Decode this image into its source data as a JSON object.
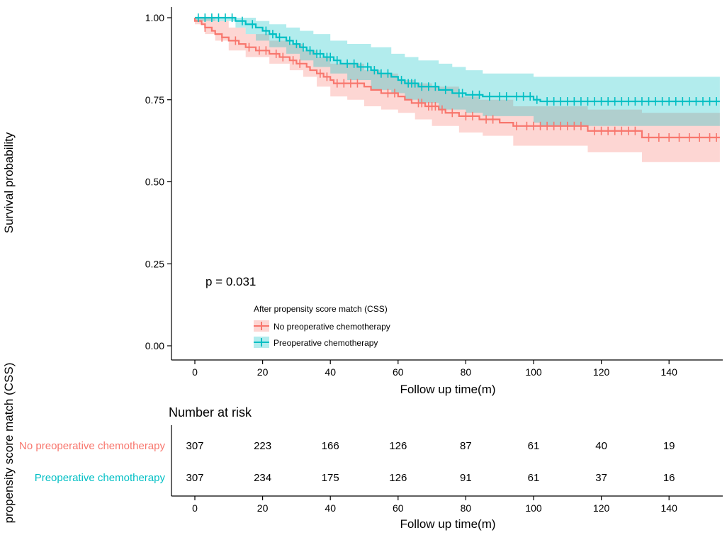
{
  "chart_data": {
    "type": "line",
    "subtype": "kaplan-meier",
    "ylabel": "Survival probability",
    "xlabel": "Follow up time(m)",
    "xlim": [
      -7,
      156
    ],
    "ylim": [
      0,
      1
    ],
    "x_ticks": [
      0,
      20,
      40,
      60,
      80,
      100,
      120,
      140
    ],
    "y_ticks": [
      0.0,
      0.25,
      0.5,
      0.75,
      1.0
    ],
    "y_tick_labels": [
      "0.00",
      "0.25",
      "0.50",
      "0.75",
      "1.00"
    ],
    "annotation": "p = 0.031",
    "legend": {
      "title": "After propensity score match (CSS)",
      "entries": [
        "No preoperative chemotherapy",
        "Preoperative chemotherapy"
      ]
    },
    "series": [
      {
        "name": "No preoperative chemotherapy",
        "color": "#F8766D",
        "band_color": "#F8766D",
        "steps": [
          [
            0,
            1.0
          ],
          [
            0,
            0.99
          ],
          [
            2,
            0.98
          ],
          [
            3,
            0.97
          ],
          [
            5,
            0.96
          ],
          [
            6,
            0.95
          ],
          [
            8,
            0.94
          ],
          [
            10,
            0.93
          ],
          [
            13,
            0.92
          ],
          [
            15,
            0.91
          ],
          [
            18,
            0.9
          ],
          [
            22,
            0.89
          ],
          [
            25,
            0.88
          ],
          [
            28,
            0.87
          ],
          [
            30,
            0.86
          ],
          [
            33,
            0.85
          ],
          [
            34,
            0.84
          ],
          [
            36,
            0.83
          ],
          [
            38,
            0.82
          ],
          [
            40,
            0.81
          ],
          [
            41,
            0.8
          ],
          [
            50,
            0.79
          ],
          [
            52,
            0.78
          ],
          [
            55,
            0.77
          ],
          [
            60,
            0.76
          ],
          [
            62,
            0.75
          ],
          [
            64,
            0.74
          ],
          [
            68,
            0.73
          ],
          [
            72,
            0.72
          ],
          [
            74,
            0.71
          ],
          [
            78,
            0.7
          ],
          [
            84,
            0.69
          ],
          [
            90,
            0.68
          ],
          [
            94,
            0.67
          ],
          [
            116,
            0.655
          ],
          [
            132,
            0.635
          ],
          [
            155,
            0.635
          ]
        ],
        "lower": [
          [
            0,
            0.98
          ],
          [
            3,
            0.95
          ],
          [
            6,
            0.93
          ],
          [
            10,
            0.9
          ],
          [
            15,
            0.88
          ],
          [
            22,
            0.86
          ],
          [
            28,
            0.84
          ],
          [
            32,
            0.82
          ],
          [
            36,
            0.79
          ],
          [
            40,
            0.76
          ],
          [
            45,
            0.75
          ],
          [
            50,
            0.73
          ],
          [
            55,
            0.72
          ],
          [
            60,
            0.71
          ],
          [
            65,
            0.69
          ],
          [
            70,
            0.67
          ],
          [
            78,
            0.65
          ],
          [
            85,
            0.64
          ],
          [
            94,
            0.61
          ],
          [
            116,
            0.59
          ],
          [
            132,
            0.56
          ],
          [
            155,
            0.56
          ]
        ],
        "upper": [
          [
            0,
            1.0
          ],
          [
            3,
            1.0
          ],
          [
            6,
            0.99
          ],
          [
            10,
            0.97
          ],
          [
            15,
            0.95
          ],
          [
            22,
            0.93
          ],
          [
            28,
            0.92
          ],
          [
            32,
            0.9
          ],
          [
            36,
            0.88
          ],
          [
            40,
            0.86
          ],
          [
            50,
            0.84
          ],
          [
            55,
            0.83
          ],
          [
            60,
            0.81
          ],
          [
            65,
            0.8
          ],
          [
            70,
            0.79
          ],
          [
            78,
            0.76
          ],
          [
            84,
            0.75
          ],
          [
            94,
            0.73
          ],
          [
            116,
            0.72
          ],
          [
            132,
            0.71
          ],
          [
            155,
            0.71
          ]
        ],
        "censor_x": [
          3,
          8,
          12,
          16,
          19,
          21,
          24,
          26,
          29,
          31,
          37,
          39,
          42,
          44,
          46,
          48,
          57,
          59,
          66,
          67,
          69,
          70,
          71,
          73,
          76,
          80,
          82,
          86,
          88,
          95,
          98,
          100,
          102,
          104,
          106,
          108,
          110,
          112,
          114,
          118,
          120,
          122,
          124,
          126,
          128,
          130,
          134,
          137,
          140,
          143,
          146,
          149,
          152,
          154
        ]
      },
      {
        "name": "Preoperative chemotherapy",
        "color": "#00BFC4",
        "band_color": "#00BFC4",
        "steps": [
          [
            0,
            1.0
          ],
          [
            12,
            0.99
          ],
          [
            15,
            0.98
          ],
          [
            18,
            0.97
          ],
          [
            20,
            0.96
          ],
          [
            22,
            0.95
          ],
          [
            24,
            0.94
          ],
          [
            27,
            0.93
          ],
          [
            29,
            0.92
          ],
          [
            31,
            0.91
          ],
          [
            33,
            0.9
          ],
          [
            35,
            0.89
          ],
          [
            38,
            0.88
          ],
          [
            41,
            0.87
          ],
          [
            43,
            0.86
          ],
          [
            48,
            0.85
          ],
          [
            52,
            0.84
          ],
          [
            54,
            0.83
          ],
          [
            58,
            0.82
          ],
          [
            60,
            0.81
          ],
          [
            62,
            0.8
          ],
          [
            66,
            0.79
          ],
          [
            72,
            0.78
          ],
          [
            76,
            0.77
          ],
          [
            80,
            0.765
          ],
          [
            85,
            0.76
          ],
          [
            100,
            0.75
          ],
          [
            102,
            0.745
          ],
          [
            155,
            0.745
          ]
        ],
        "lower": [
          [
            0,
            0.99
          ],
          [
            12,
            0.97
          ],
          [
            15,
            0.95
          ],
          [
            18,
            0.93
          ],
          [
            22,
            0.91
          ],
          [
            27,
            0.89
          ],
          [
            31,
            0.87
          ],
          [
            35,
            0.85
          ],
          [
            40,
            0.83
          ],
          [
            45,
            0.81
          ],
          [
            52,
            0.78
          ],
          [
            58,
            0.77
          ],
          [
            62,
            0.75
          ],
          [
            66,
            0.74
          ],
          [
            72,
            0.72
          ],
          [
            80,
            0.71
          ],
          [
            85,
            0.7
          ],
          [
            100,
            0.68
          ],
          [
            102,
            0.67
          ],
          [
            155,
            0.67
          ]
        ],
        "upper": [
          [
            0,
            1.0
          ],
          [
            12,
            1.0
          ],
          [
            18,
            0.99
          ],
          [
            22,
            0.98
          ],
          [
            27,
            0.97
          ],
          [
            31,
            0.96
          ],
          [
            35,
            0.95
          ],
          [
            40,
            0.93
          ],
          [
            45,
            0.92
          ],
          [
            52,
            0.91
          ],
          [
            58,
            0.89
          ],
          [
            62,
            0.88
          ],
          [
            66,
            0.87
          ],
          [
            72,
            0.86
          ],
          [
            76,
            0.85
          ],
          [
            80,
            0.84
          ],
          [
            85,
            0.83
          ],
          [
            100,
            0.82
          ],
          [
            155,
            0.82
          ]
        ],
        "censor_x": [
          1,
          3,
          5,
          7,
          9,
          11,
          14,
          17,
          21,
          23,
          25,
          28,
          30,
          32,
          34,
          36,
          37,
          39,
          40,
          42,
          45,
          47,
          49,
          51,
          53,
          55,
          57,
          61,
          63,
          64,
          65,
          67,
          69,
          71,
          74,
          78,
          79,
          82,
          84,
          87,
          90,
          92,
          95,
          97,
          99,
          101,
          104,
          106,
          108,
          110,
          112,
          114,
          116,
          118,
          120,
          122,
          124,
          126,
          128,
          130,
          132,
          134,
          136,
          138,
          140,
          142,
          144,
          146,
          148,
          150,
          152,
          154
        ]
      }
    ],
    "risk_table": {
      "ylabel": "propensity score match (CSS)",
      "title": "Number at risk",
      "xlabel": "Follow up time(m)",
      "times": [
        0,
        20,
        40,
        60,
        80,
        100,
        120,
        140
      ],
      "rows": [
        {
          "label": "No preoperative chemotherapy",
          "color": "#F8766D",
          "values": [
            307,
            223,
            166,
            126,
            87,
            61,
            40,
            19
          ]
        },
        {
          "label": "Preoperative chemotherapy",
          "color": "#00BFC4",
          "values": [
            307,
            234,
            175,
            126,
            91,
            61,
            37,
            16
          ]
        }
      ]
    }
  }
}
